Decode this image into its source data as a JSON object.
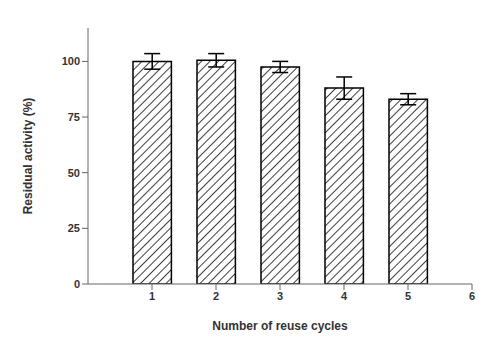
{
  "chart_data": {
    "type": "bar",
    "x": [
      1,
      2,
      3,
      4,
      5
    ],
    "values": [
      100.0,
      100.5,
      97.5,
      88.0,
      83.0
    ],
    "errors": [
      3.5,
      3.0,
      2.5,
      5.0,
      2.5
    ],
    "color": "white",
    "xlabel": "Number of reuse cycles",
    "ylabel": "Residual activity (%)",
    "xlim": [
      0,
      6
    ],
    "xticks": [
      1,
      2,
      3,
      4,
      5,
      6
    ],
    "ylim": [
      0,
      115
    ],
    "yticks": [
      0,
      25,
      50,
      75,
      100
    ],
    "grid": false
  }
}
